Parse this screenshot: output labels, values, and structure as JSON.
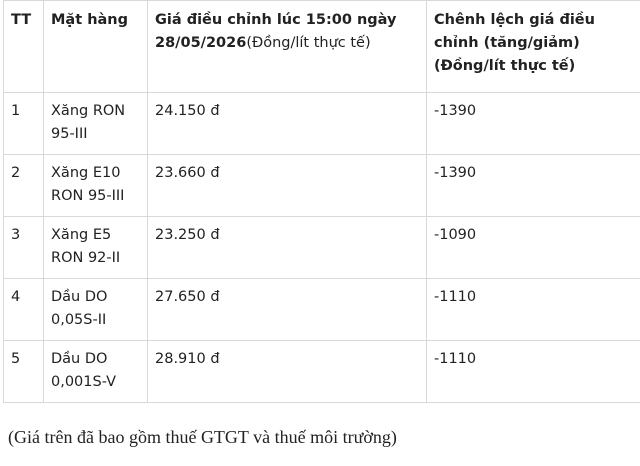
{
  "table": {
    "header": [
      {
        "text": "TT"
      },
      {
        "text": "Mặt hàng"
      },
      {
        "text": "Giá điều chỉnh lúc 15:00 ngày 28/05/2026",
        "unit": "(Đồng/lít thực tế)"
      },
      {
        "text": "Chênh lệch giá điều chỉnh (tăng/giảm) (Đồng/lít thực tế)"
      }
    ],
    "rows": [
      [
        "1",
        "Xăng RON 95-III",
        "24.150 đ",
        "-1390"
      ],
      [
        "2",
        "Xăng E10 RON 95-III",
        "23.660 đ",
        "-1390"
      ],
      [
        "3",
        "Xăng E5 RON 92-II",
        "23.250 đ",
        "-1090"
      ],
      [
        "4",
        "Dầu DO 0,05S-II",
        "27.650 đ",
        "-1110"
      ],
      [
        "5",
        "Dầu DO 0,001S-V",
        "28.910 đ",
        "-1110"
      ]
    ]
  },
  "note": "(Giá trên đã bao gồm thuế GTGT và thuế môi trường)"
}
